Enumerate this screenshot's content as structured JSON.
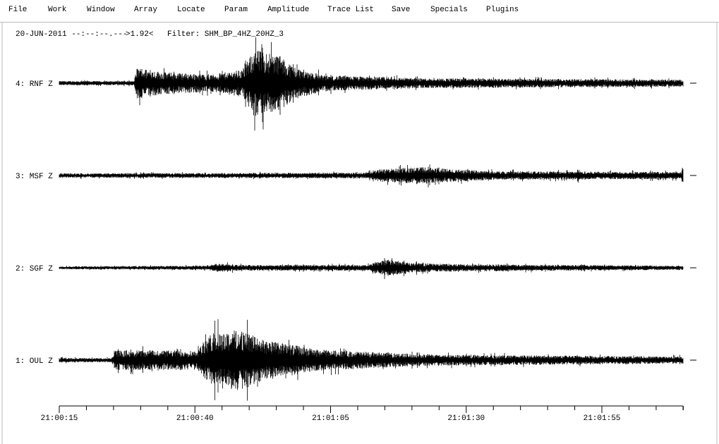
{
  "menu": [
    "File",
    "Work",
    "Window",
    "Array",
    "Locate",
    "Param",
    "Amplitude",
    "Trace List",
    "Save",
    "Specials",
    "Plugins"
  ],
  "info": {
    "datetime": "20-JUN-2011 --:--:--.---",
    "scale": ">1.92<",
    "filter": "Filter: SHM_BP_4HZ_20HZ_3"
  },
  "traces": [
    "4: RNF Z",
    "3: MSF Z",
    "2: SGF Z",
    "1: OUL Z"
  ],
  "time_axis": {
    "labels": [
      "21:00:15",
      "21:00:40",
      "21:01:05",
      "21:01:30",
      "21:01:55"
    ]
  }
}
